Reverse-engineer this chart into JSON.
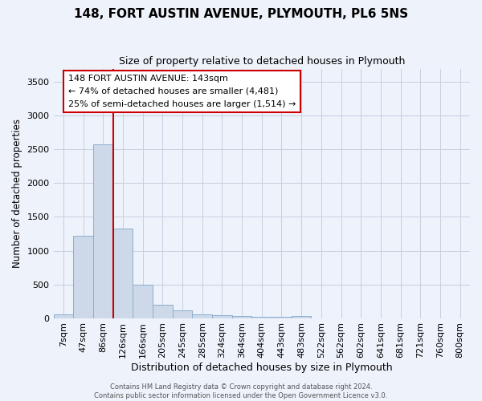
{
  "title": "148, FORT AUSTIN AVENUE, PLYMOUTH, PL6 5NS",
  "subtitle": "Size of property relative to detached houses in Plymouth",
  "xlabel": "Distribution of detached houses by size in Plymouth",
  "ylabel": "Number of detached properties",
  "bar_color": "#cdd9e8",
  "bar_edgecolor": "#8aafd0",
  "annotation_line_color": "#cc0000",
  "background_color": "#eef2fb",
  "grid_color": "#c5cfe0",
  "categories": [
    "7sqm",
    "47sqm",
    "86sqm",
    "126sqm",
    "166sqm",
    "205sqm",
    "245sqm",
    "285sqm",
    "324sqm",
    "364sqm",
    "404sqm",
    "443sqm",
    "483sqm",
    "522sqm",
    "562sqm",
    "602sqm",
    "641sqm",
    "681sqm",
    "721sqm",
    "760sqm",
    "800sqm"
  ],
  "values": [
    50,
    1220,
    2580,
    1330,
    490,
    200,
    115,
    50,
    40,
    25,
    20,
    15,
    30,
    0,
    0,
    0,
    0,
    0,
    0,
    0,
    0
  ],
  "ylim": [
    0,
    3700
  ],
  "yticks": [
    0,
    500,
    1000,
    1500,
    2000,
    2500,
    3000,
    3500
  ],
  "annotation_box_text": [
    "148 FORT AUSTIN AVENUE: 143sqm",
    "← 74% of detached houses are smaller (4,481)",
    "25% of semi-detached houses are larger (1,514) →"
  ],
  "vline_x_index": 2.5,
  "footer": "Contains HM Land Registry data © Crown copyright and database right 2024.\nContains public sector information licensed under the Open Government Licence v3.0."
}
